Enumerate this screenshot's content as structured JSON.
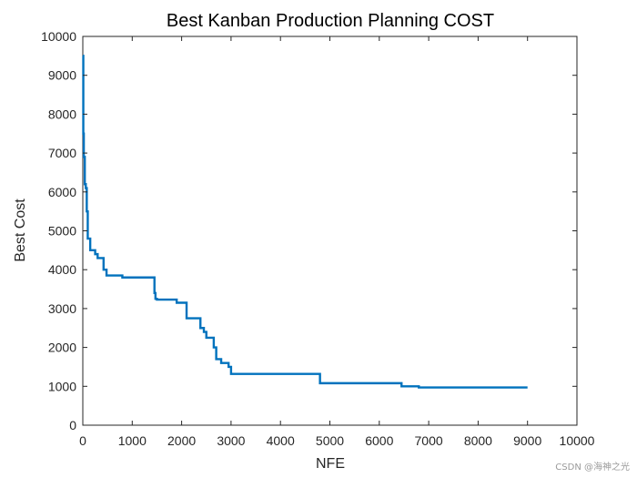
{
  "chart_data": {
    "type": "line",
    "title": "Best Kanban Production Planning COST",
    "xlabel": "NFE",
    "ylabel": "Best Cost",
    "xlim": [
      0,
      10000
    ],
    "ylim": [
      0,
      10000
    ],
    "xticks": [
      0,
      1000,
      2000,
      3000,
      4000,
      5000,
      6000,
      7000,
      8000,
      9000,
      10000
    ],
    "yticks": [
      0,
      1000,
      2000,
      3000,
      4000,
      5000,
      6000,
      7000,
      8000,
      9000,
      10000
    ],
    "grid": false,
    "series": [
      {
        "name": "Best Cost",
        "color": "#0072BD",
        "x": [
          0,
          10,
          10,
          20,
          20,
          40,
          40,
          60,
          60,
          80,
          80,
          100,
          100,
          150,
          150,
          250,
          250,
          300,
          300,
          420,
          420,
          480,
          480,
          800,
          800,
          1450,
          1450,
          1470,
          1470,
          1500,
          1500,
          1900,
          1900,
          2100,
          2100,
          2380,
          2380,
          2450,
          2450,
          2500,
          2500,
          2650,
          2650,
          2700,
          2700,
          2800,
          2800,
          2950,
          2950,
          3000,
          3000,
          4800,
          4800,
          6450,
          6450,
          6800,
          6800,
          9000
        ],
        "values": [
          9500,
          9500,
          7500,
          7500,
          6900,
          6900,
          6200,
          6200,
          6100,
          6100,
          5500,
          5500,
          4800,
          4800,
          4500,
          4500,
          4400,
          4400,
          4300,
          4300,
          4000,
          4000,
          3850,
          3850,
          3800,
          3800,
          3400,
          3400,
          3250,
          3250,
          3230,
          3230,
          3150,
          3150,
          2750,
          2750,
          2500,
          2500,
          2400,
          2400,
          2250,
          2250,
          2000,
          2000,
          1700,
          1700,
          1600,
          1600,
          1500,
          1500,
          1320,
          1320,
          1080,
          1080,
          1000,
          1000,
          970,
          970
        ]
      }
    ]
  },
  "watermark": "CSDN @海神之光"
}
